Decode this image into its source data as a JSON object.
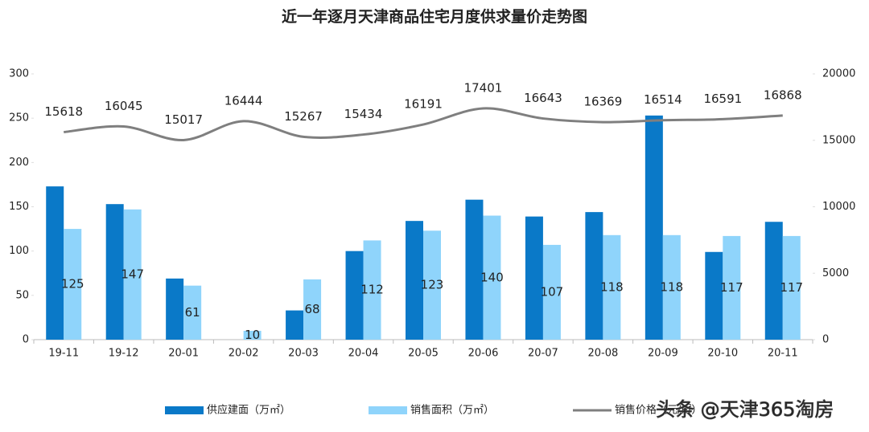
{
  "chart_data": {
    "type": "bar-line",
    "title": "近一年逐月天津商品住宅月度供求量价走势图",
    "categories": [
      "19-11",
      "19-12",
      "20-01",
      "20-02",
      "20-03",
      "20-04",
      "20-05",
      "20-06",
      "20-07",
      "20-08",
      "20-09",
      "20-10",
      "20-11"
    ],
    "series": [
      {
        "name": "供应建面（万㎡）",
        "color": "#0a79c8",
        "values": [
          173,
          153,
          69,
          null,
          33,
          100,
          134,
          158,
          139,
          144,
          253,
          99,
          133
        ]
      },
      {
        "name": "销售面积（万㎡）",
        "color": "#8fd4fb",
        "values": [
          125,
          147,
          61,
          10,
          68,
          112,
          123,
          140,
          107,
          118,
          118,
          117,
          117
        ]
      },
      {
        "name": "销售价格（元/㎡）",
        "color": "#7f7f7f",
        "axis": "y2",
        "values": [
          15618,
          16045,
          15017,
          16444,
          15267,
          15434,
          16191,
          17401,
          16643,
          16369,
          16514,
          16591,
          16868
        ]
      }
    ],
    "ylim": [
      0,
      300
    ],
    "yticks": [
      0,
      50,
      100,
      150,
      200,
      250,
      300
    ],
    "y2lim": [
      0,
      20000
    ],
    "y2ticks": [
      0,
      5000,
      10000,
      15000,
      20000
    ],
    "watermark": "头条 @天津365淘房"
  }
}
